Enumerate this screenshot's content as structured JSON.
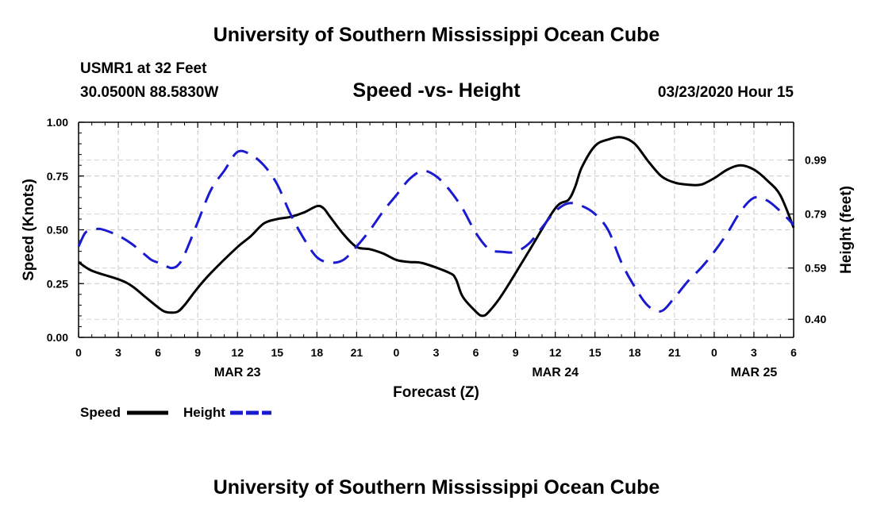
{
  "header": {
    "title": "University of Southern Mississippi Ocean Cube",
    "station": "USMR1 at 32 Feet",
    "coordinates": "30.0500N 88.5830W",
    "datetime": "03/23/2020 Hour 15"
  },
  "footer": {
    "title": "University of Southern Mississippi Ocean Cube"
  },
  "chart_data": {
    "type": "line",
    "title": "Speed -vs- Height",
    "xlabel": "Forecast (Z)",
    "ylabel": "Speed (Knots)",
    "y2label": "Height (feet)",
    "xlim": [
      0,
      54
    ],
    "ylim": [
      0,
      1
    ],
    "y2lim": [
      0.333,
      1.13
    ],
    "grid": true,
    "legend_position": "bottom-left",
    "x_ticks": [
      0,
      3,
      6,
      9,
      12,
      15,
      18,
      21,
      24,
      27,
      30,
      33,
      36,
      39,
      42,
      45,
      48,
      51,
      54
    ],
    "x_tick_labels": [
      "0",
      "3",
      "6",
      "9",
      "12",
      "15",
      "18",
      "21",
      "0",
      "3",
      "6",
      "9",
      "12",
      "15",
      "18",
      "21",
      "0",
      "3",
      "6"
    ],
    "date_labels": [
      {
        "x": 12,
        "label": "MAR 23"
      },
      {
        "x": 36,
        "label": "MAR 24"
      },
      {
        "x": 51,
        "label": "MAR 25"
      }
    ],
    "y_ticks": [
      0,
      0.25,
      0.5,
      0.75,
      1.0
    ],
    "y_tick_labels": [
      "0.00",
      "0.25",
      "0.50",
      "0.75",
      "1.00"
    ],
    "y2_ticks": [
      0.4,
      0.59,
      0.79,
      0.99
    ],
    "y2_tick_labels": [
      "0.40",
      "0.59",
      "0.79",
      "0.99"
    ],
    "series": [
      {
        "name": "Speed",
        "color": "#000000",
        "axis": "left",
        "dash": "solid",
        "x": [
          0,
          1,
          3,
          4,
          5,
          6,
          6.5,
          7,
          7.5,
          8,
          9,
          10,
          12,
          13,
          14,
          15,
          16,
          17,
          18,
          18.5,
          19,
          20,
          21,
          22,
          23,
          24,
          25,
          26,
          28,
          28.5,
          29,
          30,
          30.5,
          31,
          32,
          34,
          36,
          37,
          37.5,
          38,
          39,
          40,
          41,
          42,
          43,
          44,
          45,
          46,
          47,
          48,
          49,
          50,
          51,
          52,
          53,
          54
        ],
        "y": [
          0.35,
          0.31,
          0.27,
          0.24,
          0.19,
          0.14,
          0.12,
          0.115,
          0.12,
          0.15,
          0.23,
          0.3,
          0.42,
          0.47,
          0.53,
          0.55,
          0.56,
          0.58,
          0.61,
          0.6,
          0.56,
          0.48,
          0.42,
          0.41,
          0.39,
          0.36,
          0.35,
          0.345,
          0.3,
          0.27,
          0.19,
          0.12,
          0.1,
          0.12,
          0.2,
          0.4,
          0.6,
          0.64,
          0.7,
          0.79,
          0.89,
          0.92,
          0.93,
          0.9,
          0.82,
          0.75,
          0.72,
          0.71,
          0.71,
          0.74,
          0.78,
          0.8,
          0.78,
          0.73,
          0.66,
          0.51
        ]
      },
      {
        "name": "Height",
        "color": "#1a1ad0",
        "axis": "right",
        "dash": "dashed",
        "x": [
          0,
          0.5,
          1,
          1.5,
          2,
          3,
          4,
          5,
          5.5,
          6,
          6.5,
          7,
          7.5,
          8,
          9,
          10,
          11,
          12,
          13,
          14,
          15,
          16,
          17,
          18,
          19,
          20,
          21,
          22,
          23,
          24,
          25,
          26,
          27,
          28,
          29,
          30,
          31,
          32,
          33,
          34,
          35,
          36,
          37,
          38,
          39,
          40,
          41,
          42,
          43,
          44,
          45,
          46,
          47,
          48,
          49,
          50,
          51,
          52,
          53,
          54
        ],
        "y": [
          0.67,
          0.72,
          0.73,
          0.735,
          0.73,
          0.71,
          0.68,
          0.64,
          0.62,
          0.61,
          0.6,
          0.59,
          0.6,
          0.64,
          0.76,
          0.88,
          0.95,
          1.02,
          1.01,
          0.97,
          0.9,
          0.79,
          0.7,
          0.63,
          0.61,
          0.62,
          0.67,
          0.73,
          0.8,
          0.86,
          0.92,
          0.95,
          0.93,
          0.88,
          0.81,
          0.72,
          0.66,
          0.65,
          0.65,
          0.68,
          0.74,
          0.8,
          0.83,
          0.82,
          0.79,
          0.73,
          0.61,
          0.52,
          0.45,
          0.43,
          0.48,
          0.54,
          0.59,
          0.65,
          0.72,
          0.8,
          0.85,
          0.84,
          0.8,
          0.75
        ]
      }
    ]
  }
}
